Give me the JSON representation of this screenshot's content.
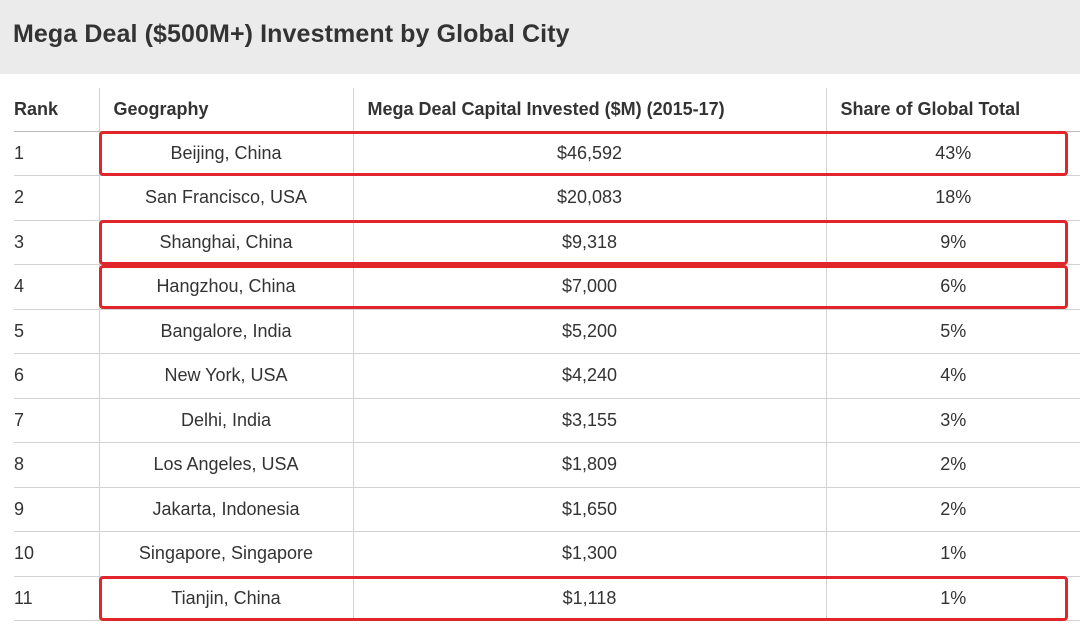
{
  "title": "Mega Deal ($500M+) Investment by Global City",
  "table": {
    "headers": {
      "rank": "Rank",
      "geography": "Geography",
      "capital": "Mega Deal Capital Invested ($M) (2015-17)",
      "share": "Share of Global Total"
    },
    "rows": [
      {
        "rank": "1",
        "geography": "Beijing, China",
        "capital": "$46,592",
        "share": "43%",
        "highlighted": true
      },
      {
        "rank": "2",
        "geography": "San Francisco, USA",
        "capital": "$20,083",
        "share": "18%",
        "highlighted": false
      },
      {
        "rank": "3",
        "geography": "Shanghai, China",
        "capital": "$9,318",
        "share": "9%",
        "highlighted": true
      },
      {
        "rank": "4",
        "geography": "Hangzhou, China",
        "capital": "$7,000",
        "share": "6%",
        "highlighted": true
      },
      {
        "rank": "5",
        "geography": "Bangalore, India",
        "capital": "$5,200",
        "share": "5%",
        "highlighted": false
      },
      {
        "rank": "6",
        "geography": "New York, USA",
        "capital": "$4,240",
        "share": "4%",
        "highlighted": false
      },
      {
        "rank": "7",
        "geography": "Delhi, India",
        "capital": "$3,155",
        "share": "3%",
        "highlighted": false
      },
      {
        "rank": "8",
        "geography": "Los Angeles, USA",
        "capital": "$1,809",
        "share": "2%",
        "highlighted": false
      },
      {
        "rank": "9",
        "geography": "Jakarta, Indonesia",
        "capital": "$1,650",
        "share": "2%",
        "highlighted": false
      },
      {
        "rank": "10",
        "geography": "Singapore, Singapore",
        "capital": "$1,300",
        "share": "1%",
        "highlighted": false
      },
      {
        "rank": "11",
        "geography": "Tianjin, China",
        "capital": "$1,118",
        "share": "1%",
        "highlighted": true
      }
    ]
  },
  "colors": {
    "title_background": "#ebebeb",
    "highlight_border": "#e0262a",
    "grid_line": "#d2d2d2",
    "text": "#333333"
  }
}
